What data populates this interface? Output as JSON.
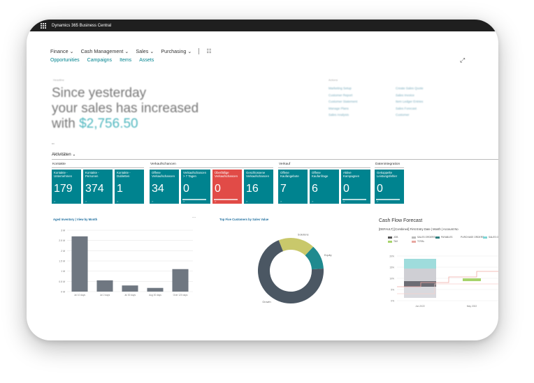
{
  "app": {
    "title": "Dynamics 365 Business Central"
  },
  "nav": {
    "menus": [
      "Finance",
      "Cash Management",
      "Sales",
      "Purchasing"
    ],
    "links": [
      "Opportunities",
      "Campaigns",
      "Items",
      "Assets"
    ]
  },
  "headline": {
    "small": "Headline",
    "line1": "Since yesterday",
    "line2": "your sales has increased",
    "line3_prefix": "with ",
    "amount": "$2,756.50"
  },
  "actions": {
    "label": "Actions",
    "items": [
      "Marketing Setup",
      "Create Sales Quote",
      "Customer Report",
      "Sales Invoice",
      "Customer Statement",
      "Item Ledger Entries",
      "Manage Plans",
      "Sales Forecast",
      "Sales Analysis",
      "Customer"
    ]
  },
  "activities": {
    "title": "Aktivitäten",
    "groups": [
      {
        "title": "Kontakte",
        "tiles": [
          {
            "label": "Kontakte - Unternehmen",
            "value": "179",
            "color": "#00838f"
          },
          {
            "label": "Kontakte - Personen",
            "value": "374",
            "color": "#00838f"
          },
          {
            "label": "Kontakte - Dubletten",
            "value": "1",
            "color": "#00838f"
          }
        ]
      },
      {
        "title": "Verkaufschancen",
        "tiles": [
          {
            "label": "Offene Verkaufschancen",
            "value": "34",
            "color": "#00838f"
          },
          {
            "label": "Verkaufschancen > 7 Tagen",
            "value": "0",
            "color": "#00838f"
          },
          {
            "label": "Überfällige Verkaufschancen",
            "value": "0",
            "color": "#e14b47"
          },
          {
            "label": "Geschlossene Verkaufschancen",
            "value": "16",
            "color": "#00838f"
          }
        ]
      },
      {
        "title": "Verkauf",
        "tiles": [
          {
            "label": "Offene Kaufangebote",
            "value": "7",
            "color": "#00838f"
          },
          {
            "label": "Offene Kaufanfrage",
            "value": "6",
            "color": "#00838f"
          },
          {
            "label": "Aktive Kampagnen",
            "value": "0",
            "color": "#00838f"
          }
        ]
      },
      {
        "title": "Datenintegration",
        "tiles": [
          {
            "label": "Gekoppelte Leistungsfehler",
            "value": "0",
            "color": "#00838f"
          }
        ]
      }
    ]
  },
  "charts": {
    "aged_inventory": {
      "title": "Aged Inventory | View by Month",
      "more": "..."
    },
    "top_customers": {
      "title": "Top Five Customers by Sales Value"
    },
    "cash_flow": {
      "title": "Cash Flow Forecast",
      "subtitle": "[DEFAULT] [Combined] First Entry Date | Month | Account No",
      "legend": [
        {
          "name": "JOB",
          "color": "#555555"
        },
        {
          "name": "SALES ORDERS",
          "color": "#bbbbbb"
        },
        {
          "name": "PAYABLES",
          "color": "#2f7f7f"
        },
        {
          "name": "PURCHASE ORDERS",
          "color": "#66cccc"
        },
        {
          "name": "SALES ORDERS",
          "color": "#7ed5d5"
        },
        {
          "name": "TAX",
          "color": "#a7d36b"
        },
        {
          "name": "TOTAL",
          "color": "#e8a7a0"
        }
      ]
    }
  },
  "chart_data": [
    {
      "type": "bar",
      "title": "Aged Inventory | View by Month",
      "categories": [
        "Jul 10 days",
        "Jul 2 days",
        "Jul 30 days",
        "Aug 30 days",
        "Over 120 days"
      ],
      "values": [
        2.7,
        0.55,
        0.3,
        0.18,
        1.1
      ],
      "yticks": [
        "3 M",
        "2.5 M",
        "2 M",
        "1.5 M",
        "1 M",
        "0.5 M",
        "0 M"
      ],
      "ylim": [
        0,
        3
      ],
      "color": "#6f7781"
    },
    {
      "type": "pie",
      "title": "Top Five Customers by Sales Value",
      "labels": [
        "Solutions",
        "Equity",
        "Growth"
      ],
      "values": [
        18,
        12,
        70
      ],
      "colors": [
        "#c9c86b",
        "#1f8a8f",
        "#4b5763"
      ]
    },
    {
      "type": "bar",
      "title": "Cash Flow Forecast",
      "categories": [
        "Jun 2022",
        "May 2022"
      ],
      "yticks": [
        "20%",
        "15%",
        "10%",
        "5%",
        "0%"
      ]
    }
  ]
}
